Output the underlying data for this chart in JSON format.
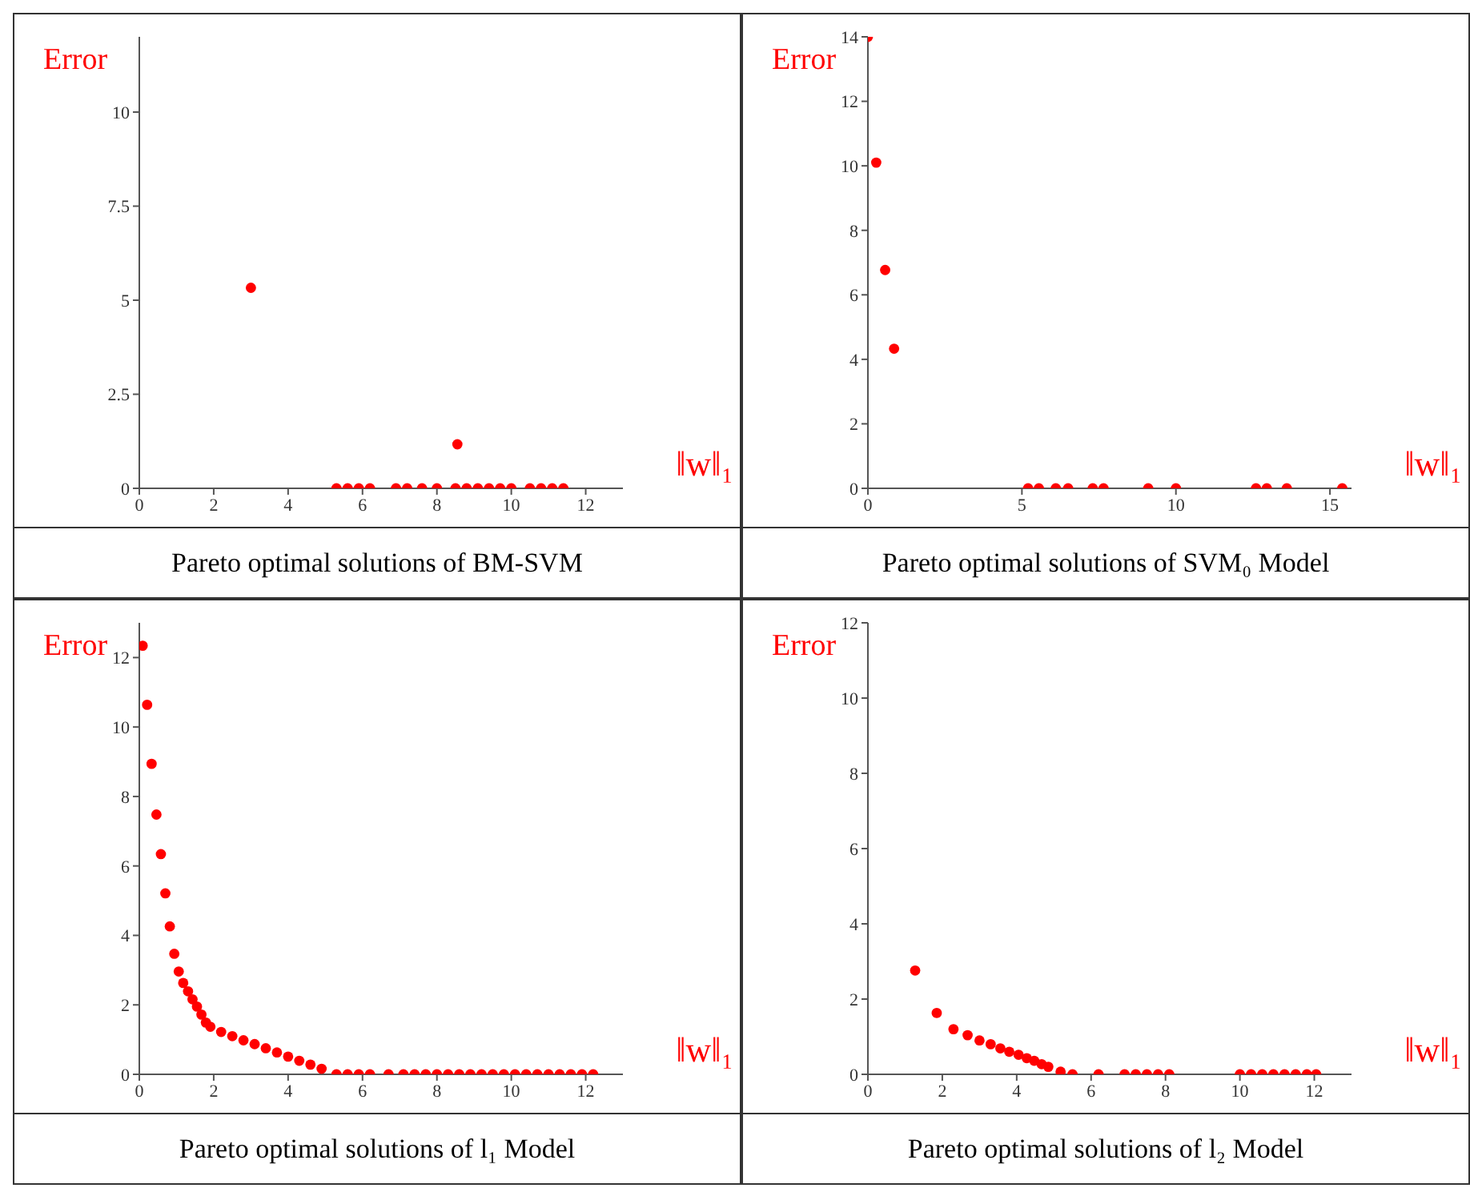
{
  "chart_data": [
    {
      "type": "scatter",
      "title": "Pareto optimal solutions of BM-SVM",
      "xlabel": "‖w‖₁",
      "ylabel": "Error",
      "color": "#ff0000",
      "marker": "circle",
      "grid": false,
      "legend": false,
      "xlim": [
        0,
        13
      ],
      "xticks": [
        0,
        2,
        4,
        6,
        8,
        10,
        12
      ],
      "ylim": [
        0,
        12
      ],
      "yticks": [
        0,
        2.5,
        5,
        7.5,
        10
      ],
      "x": [
        3.0,
        8.55,
        5.3,
        5.6,
        5.9,
        6.2,
        6.9,
        7.2,
        7.6,
        8.0,
        8.5,
        8.8,
        9.1,
        9.4,
        9.7,
        10.0,
        10.5,
        10.8,
        11.1,
        11.4
      ],
      "values": [
        5.33,
        1.17,
        0,
        0,
        0,
        0,
        0,
        0,
        0,
        0,
        0,
        0,
        0,
        0,
        0,
        0,
        0,
        0,
        0,
        0
      ]
    },
    {
      "type": "scatter",
      "title": "Pareto optimal solutions of SVM₀ Model",
      "xlabel": "‖w‖₁",
      "ylabel": "Error",
      "color": "#ff0000",
      "marker": "circle",
      "grid": false,
      "legend": false,
      "xlim": [
        0,
        15.7
      ],
      "xticks": [
        0,
        5,
        10,
        15
      ],
      "ylim": [
        0,
        14
      ],
      "yticks": [
        0,
        2,
        4,
        6,
        8,
        10,
        12,
        14
      ],
      "x": [
        0,
        0.27,
        0.56,
        0.85,
        5.2,
        5.55,
        6.1,
        6.5,
        7.3,
        7.65,
        9.1,
        10.0,
        12.6,
        12.95,
        13.6,
        15.4
      ],
      "values": [
        14,
        10.1,
        6.77,
        4.33,
        0,
        0,
        0,
        0,
        0,
        0,
        0,
        0,
        0,
        0,
        0,
        0
      ]
    },
    {
      "type": "scatter",
      "title": "Pareto optimal solutions of l₁ Model",
      "xlabel": "‖w‖₁",
      "ylabel": "Error",
      "color": "#ff0000",
      "marker": "circle",
      "grid": false,
      "legend": false,
      "xlim": [
        0,
        13
      ],
      "xticks": [
        0,
        2,
        4,
        6,
        8,
        10,
        12
      ],
      "ylim": [
        0,
        13
      ],
      "yticks": [
        0,
        2,
        4,
        6,
        8,
        10,
        12
      ],
      "x": [
        0.09,
        0.21,
        0.33,
        0.46,
        0.58,
        0.7,
        0.82,
        0.94,
        1.06,
        1.18,
        1.31,
        1.43,
        1.55,
        1.67,
        1.79,
        1.91,
        2.2,
        2.5,
        2.8,
        3.1,
        3.4,
        3.7,
        4.0,
        4.3,
        4.6,
        4.9,
        5.3,
        5.6,
        5.9,
        6.2,
        6.7,
        7.1,
        7.4,
        7.7,
        8.0,
        8.3,
        8.6,
        8.9,
        9.2,
        9.5,
        9.8,
        10.1,
        10.4,
        10.7,
        11.0,
        11.3,
        11.6,
        11.9,
        12.2
      ],
      "values": [
        12.34,
        10.64,
        8.94,
        7.48,
        6.34,
        5.21,
        4.26,
        3.47,
        2.96,
        2.63,
        2.39,
        2.16,
        1.95,
        1.72,
        1.49,
        1.37,
        1.22,
        1.1,
        0.98,
        0.87,
        0.75,
        0.63,
        0.51,
        0.39,
        0.28,
        0.16,
        0,
        0,
        0,
        0,
        0,
        0,
        0,
        0,
        0,
        0,
        0,
        0,
        0,
        0,
        0,
        0,
        0,
        0,
        0,
        0,
        0,
        0,
        0
      ]
    },
    {
      "type": "scatter",
      "title": "Pareto optimal solutions of l₂ Model",
      "xlabel": "‖w‖₁",
      "ylabel": "Error",
      "color": "#ff0000",
      "marker": "circle",
      "grid": false,
      "legend": false,
      "xlim": [
        0,
        13
      ],
      "xticks": [
        0,
        2,
        4,
        6,
        8,
        10,
        12
      ],
      "ylim": [
        0,
        12
      ],
      "yticks": [
        0,
        2,
        4,
        6,
        8,
        10,
        12
      ],
      "x": [
        1.27,
        1.85,
        2.3,
        2.68,
        3.0,
        3.3,
        3.56,
        3.8,
        4.05,
        4.27,
        4.47,
        4.67,
        4.85,
        5.18,
        5.5,
        6.2,
        6.9,
        7.2,
        7.5,
        7.8,
        8.1,
        10.0,
        10.3,
        10.6,
        10.9,
        11.2,
        11.5,
        11.8,
        12.05
      ],
      "values": [
        2.76,
        1.63,
        1.2,
        1.04,
        0.9,
        0.8,
        0.69,
        0.6,
        0.52,
        0.43,
        0.36,
        0.27,
        0.2,
        0.07,
        0,
        0,
        0,
        0,
        0,
        0,
        0,
        0,
        0,
        0,
        0,
        0,
        0,
        0,
        0
      ]
    }
  ]
}
